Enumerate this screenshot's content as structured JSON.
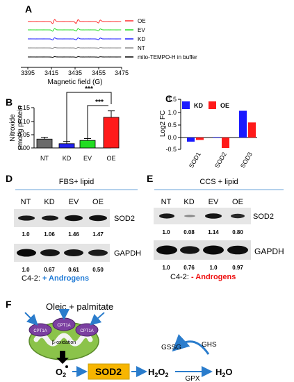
{
  "chart_data": [
    {
      "panel": "A",
      "type": "line",
      "xlabel": "Magnetic field (G)",
      "x_ticks": [
        "3395",
        "3415",
        "3435",
        "3455",
        "3475"
      ],
      "xlim": [
        3395,
        3475
      ],
      "series": [
        {
          "name": "OE",
          "color": "#ff2a2a"
        },
        {
          "name": "EV",
          "color": "#22dd22"
        },
        {
          "name": "KD",
          "color": "#1a1aff"
        },
        {
          "name": "NT",
          "color": "#888888"
        },
        {
          "name": "mito-TEMPO-H in buffer",
          "color": "#000000"
        }
      ]
    },
    {
      "panel": "B",
      "type": "bar",
      "ylabel_line1": "Nitroxide",
      "ylabel_line2": "µmol/g protein",
      "categories": [
        "NT",
        "KD",
        "EV",
        "OE"
      ],
      "values": [
        0.033,
        0.016,
        0.028,
        0.114
      ],
      "errors": [
        0.007,
        0.008,
        0.007,
        0.024
      ],
      "colors": [
        "#6b6b6b",
        "#2222ee",
        "#22dd22",
        "#ff1a1a"
      ],
      "ylim": [
        0,
        0.15
      ],
      "y_ticks": [
        "0.00",
        "0.05",
        "0.10",
        "0.15"
      ],
      "significance": [
        {
          "from": "KD",
          "to": "OE",
          "label": "***"
        },
        {
          "from": "EV",
          "to": "OE",
          "label": "***"
        }
      ]
    },
    {
      "panel": "C",
      "type": "bar",
      "ylabel": "Log2 FC",
      "categories": [
        "SOD1",
        "SOD2",
        "SOD3"
      ],
      "series": [
        {
          "name": "KD",
          "color": "#1a1aff",
          "values": [
            -0.17,
            0.02,
            1.1
          ]
        },
        {
          "name": "OE",
          "color": "#ff1a1a",
          "values": [
            -0.1,
            -0.43,
            0.62
          ]
        }
      ],
      "ylim": [
        -0.5,
        1.5
      ],
      "y_ticks": [
        "-0.5",
        "0.0",
        "0.5",
        "1.0",
        "1.5"
      ]
    }
  ],
  "panels": {
    "A": {
      "letter": "A"
    },
    "B": {
      "letter": "B",
      "sig1": "***",
      "sig2": "***"
    },
    "C": {
      "letter": "C"
    },
    "D": {
      "letter": "D",
      "condition": "FBS+ lipid",
      "lanes": [
        "NT",
        "KD",
        "EV",
        "OE"
      ],
      "sod2_label": "SOD2",
      "sod2_values": [
        "1.0",
        "1.06",
        "1.46",
        "1.47"
      ],
      "gapdh_label": "GAPDH",
      "gapdh_values": [
        "1.0",
        "0.67",
        "0.61",
        "0.50"
      ],
      "cell_line": "C4-2: ",
      "androgen": "+ Androgens",
      "androgen_color": "#1f7ad6"
    },
    "E": {
      "letter": "E",
      "condition": "CCS + lipid",
      "lanes": [
        "NT",
        "KD",
        "EV",
        "OE"
      ],
      "sod2_label": "SOD2",
      "sod2_values": [
        "1.0",
        "0.08",
        "1.14",
        "0.80"
      ],
      "gapdh_label": "GAPDH",
      "gapdh_values": [
        "1.0",
        "0.76",
        "1.0",
        "0.97"
      ],
      "cell_line": "C4-2: ",
      "androgen": "- Androgens",
      "androgen_color": "#ee1111"
    },
    "F": {
      "letter": "F",
      "input": "Oleic + palmitate",
      "cpt": "CPT1A",
      "process": "β-oxidation",
      "o2": "O",
      "o2_sub": "2",
      "sod2": "SOD2",
      "h2o2": "H",
      "h2o2_a": "2",
      "h2o2_b": "O",
      "h2o2_c": "2",
      "h2o": "H",
      "h2o_a": "2",
      "h2o_b": "O",
      "gssg": "GSSG",
      "ghs": "GHS",
      "gpx": "GPX"
    }
  }
}
